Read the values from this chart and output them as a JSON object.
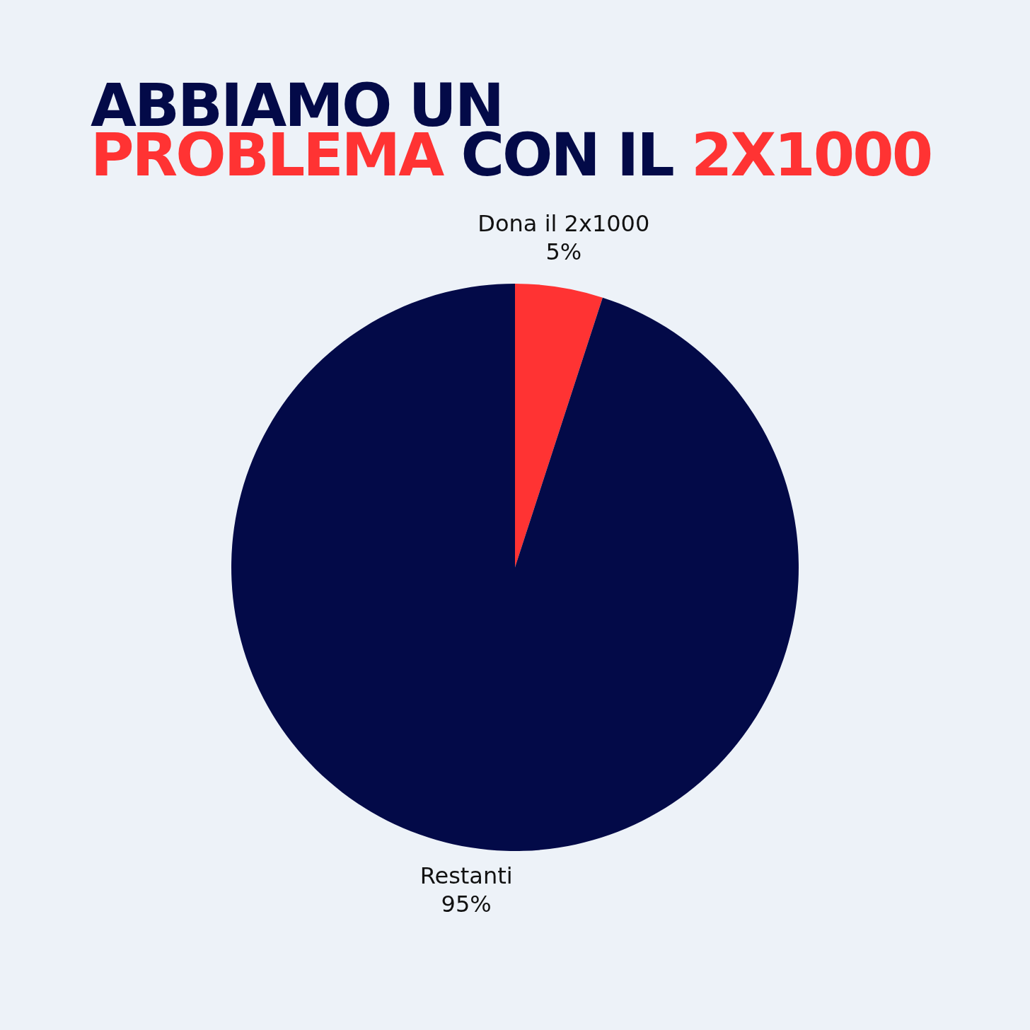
{
  "chart_data": {
    "type": "pie",
    "title": "ABBIAMO UN PROBLEMA CON IL 2X1000",
    "categories": [
      "Dona il 2x1000",
      "Restanti"
    ],
    "values": [
      5,
      95
    ],
    "colors": [
      "#ff3333",
      "#030a48"
    ],
    "value_labels": [
      "5%",
      "95%"
    ]
  }
}
